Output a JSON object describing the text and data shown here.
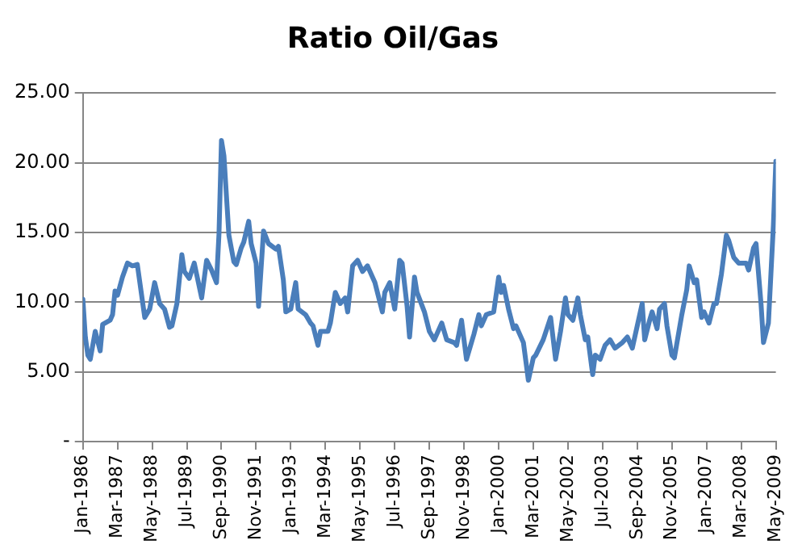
{
  "chart_data": {
    "type": "line",
    "title": "Ratio Oil/Gas",
    "x": [
      "1986-01",
      "1986-02",
      "1986-03",
      "1986-04",
      "1986-06",
      "1986-08",
      "1986-09",
      "1986-12",
      "1987-01",
      "1987-02",
      "1987-03",
      "1987-05",
      "1987-07",
      "1987-09",
      "1987-11",
      "1988-02",
      "1988-04",
      "1988-06",
      "1988-08",
      "1988-10",
      "1988-12",
      "1989-01",
      "1989-03",
      "1989-05",
      "1989-06",
      "1989-08",
      "1989-10",
      "1990-01",
      "1990-03",
      "1990-05",
      "1990-07",
      "1990-08",
      "1990-09",
      "1990-10",
      "1990-12",
      "1991-02",
      "1991-03",
      "1991-05",
      "1991-06",
      "1991-08",
      "1991-09",
      "1991-11",
      "1991-12",
      "1992-02",
      "1992-04",
      "1992-07",
      "1992-08",
      "1992-10",
      "1992-11",
      "1993-01",
      "1993-03",
      "1993-04",
      "1993-07",
      "1993-09",
      "1993-10",
      "1993-12",
      "1994-01",
      "1994-04",
      "1994-05",
      "1994-07",
      "1994-09",
      "1994-11",
      "1994-12",
      "1995-02",
      "1995-04",
      "1995-06",
      "1995-08",
      "1995-11",
      "1996-02",
      "1996-03",
      "1996-05",
      "1996-07",
      "1996-09",
      "1996-10",
      "1996-12",
      "1997-01",
      "1997-03",
      "1997-04",
      "1997-07",
      "1997-09",
      "1997-11",
      "1998-02",
      "1998-04",
      "1998-07",
      "1998-08",
      "1998-10",
      "1998-12",
      "1999-03",
      "1999-05",
      "1999-06",
      "1999-08",
      "1999-11",
      "2000-01",
      "2000-02",
      "2000-03",
      "2000-05",
      "2000-07",
      "2000-08",
      "2000-11",
      "2001-01",
      "2001-03",
      "2001-04",
      "2001-07",
      "2001-10",
      "2001-12",
      "2002-02",
      "2002-04",
      "2002-05",
      "2002-07",
      "2002-09",
      "2002-10",
      "2002-12",
      "2003-01",
      "2003-03",
      "2003-04",
      "2003-06",
      "2003-08",
      "2003-10",
      "2003-12",
      "2004-03",
      "2004-05",
      "2004-07",
      "2004-11",
      "2004-12",
      "2005-02",
      "2005-03",
      "2005-05",
      "2005-06",
      "2005-08",
      "2005-09",
      "2005-11",
      "2005-12",
      "2006-03",
      "2006-05",
      "2006-06",
      "2006-08",
      "2006-09",
      "2006-11",
      "2006-12",
      "2007-02",
      "2007-04",
      "2007-05",
      "2007-07",
      "2007-09",
      "2007-10",
      "2007-12",
      "2008-02",
      "2008-05",
      "2008-06",
      "2008-08",
      "2008-09",
      "2008-11",
      "2008-12",
      "2009-02",
      "2009-03",
      "2009-04",
      "2009-05"
    ],
    "series": [
      {
        "color": "#4a7ebb",
        "values": [
          10.2,
          7.5,
          6.2,
          5.9,
          7.9,
          6.5,
          8.4,
          8.7,
          9.1,
          10.8,
          10.5,
          11.8,
          12.8,
          12.6,
          12.7,
          8.9,
          9.5,
          11.4,
          9.9,
          9.5,
          8.2,
          8.3,
          9.9,
          13.4,
          12.2,
          11.7,
          12.8,
          10.3,
          13.0,
          12.3,
          11.4,
          14.9,
          21.6,
          20.5,
          14.8,
          12.9,
          12.7,
          13.9,
          14.3,
          15.8,
          14.2,
          12.8,
          9.7,
          15.1,
          14.2,
          13.8,
          14.0,
          11.6,
          9.3,
          9.5,
          11.4,
          9.5,
          9.1,
          8.5,
          8.3,
          6.9,
          7.9,
          7.9,
          8.5,
          10.7,
          9.9,
          10.3,
          9.3,
          12.6,
          13.0,
          12.2,
          12.6,
          11.4,
          9.3,
          10.7,
          11.4,
          9.5,
          13.0,
          12.8,
          9.7,
          7.5,
          11.8,
          10.7,
          9.3,
          7.9,
          7.3,
          8.5,
          7.3,
          7.1,
          6.9,
          8.7,
          5.9,
          7.7,
          9.1,
          8.3,
          9.1,
          9.3,
          11.8,
          10.7,
          11.2,
          9.5,
          8.1,
          8.3,
          7.1,
          4.4,
          6.0,
          6.2,
          7.3,
          8.9,
          5.9,
          7.9,
          10.3,
          9.1,
          8.7,
          10.3,
          9.1,
          7.3,
          7.5,
          4.8,
          6.2,
          5.9,
          6.9,
          7.3,
          6.7,
          7.1,
          7.5,
          6.7,
          9.9,
          7.3,
          8.7,
          9.3,
          8.1,
          9.5,
          9.9,
          8.3,
          6.2,
          6.0,
          9.1,
          10.9,
          12.6,
          11.4,
          11.6,
          8.9,
          9.3,
          8.5,
          9.9,
          9.9,
          12.0,
          14.8,
          14.4,
          13.2,
          12.8,
          12.8,
          12.3,
          13.9,
          14.2,
          9.9,
          7.1,
          8.5,
          12.0,
          15.5,
          20.1
        ]
      }
    ],
    "xlim": [
      "1986-01",
      "2009-05"
    ],
    "xticks": [
      {
        "value": "1986-01",
        "label": "Jan-1986"
      },
      {
        "value": "1987-03",
        "label": "Mar-1987"
      },
      {
        "value": "1988-05",
        "label": "May-1988"
      },
      {
        "value": "1989-07",
        "label": "Jul-1989"
      },
      {
        "value": "1990-09",
        "label": "Sep-1990"
      },
      {
        "value": "1991-11",
        "label": "Nov-1991"
      },
      {
        "value": "1993-01",
        "label": "Jan-1993"
      },
      {
        "value": "1994-03",
        "label": "Mar-1994"
      },
      {
        "value": "1995-05",
        "label": "May-1995"
      },
      {
        "value": "1996-07",
        "label": "Jul-1996"
      },
      {
        "value": "1997-09",
        "label": "Sep-1997"
      },
      {
        "value": "1998-11",
        "label": "Nov-1998"
      },
      {
        "value": "2000-01",
        "label": "Jan-2000"
      },
      {
        "value": "2001-03",
        "label": "Mar-2001"
      },
      {
        "value": "2002-05",
        "label": "May-2002"
      },
      {
        "value": "2003-07",
        "label": "Jul-2003"
      },
      {
        "value": "2004-09",
        "label": "Sep-2004"
      },
      {
        "value": "2005-11",
        "label": "Nov-2005"
      },
      {
        "value": "2007-01",
        "label": "Jan-2007"
      },
      {
        "value": "2008-03",
        "label": "Mar-2008"
      },
      {
        "value": "2009-05",
        "label": "May-2009"
      }
    ],
    "ylim": [
      0,
      25
    ],
    "yticks": [
      {
        "value": 0,
        "label": "-"
      },
      {
        "value": 5,
        "label": "5.00"
      },
      {
        "value": 10,
        "label": "10.00"
      },
      {
        "value": 15,
        "label": "15.00"
      },
      {
        "value": 20,
        "label": "20.00"
      },
      {
        "value": 25,
        "label": "25.00"
      }
    ],
    "grid": "y",
    "legend": false,
    "marker": "none",
    "line_style": "solid"
  }
}
